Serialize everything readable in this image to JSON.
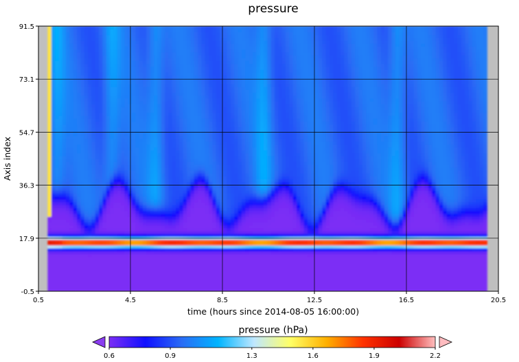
{
  "chart_data": {
    "type": "heatmap",
    "title": "pressure",
    "xlabel": "time (hours since 2014-08-05 16:00:00)",
    "ylabel": "Axis index",
    "x_ticks": [
      0.5,
      4.5,
      8.5,
      12.5,
      16.5,
      20.5
    ],
    "x_tick_labels": [
      "0.5",
      "4.5",
      "8.5",
      "12.5",
      "16.5",
      "20.5"
    ],
    "y_ticks": [
      -0.5,
      17.9,
      36.3,
      54.7,
      73.1,
      91.5
    ],
    "y_tick_labels": [
      "-0.5",
      "17.9",
      "36.3",
      "54.7",
      "73.1",
      "91.5"
    ],
    "xlim": [
      0.5,
      20.5
    ],
    "ylim": [
      -0.5,
      91.5
    ],
    "data_xlim": [
      0.9,
      20.0
    ],
    "grid": true,
    "colorbar": {
      "title": "pressure (hPa)",
      "ticks": [
        0.6,
        0.9,
        1.3,
        1.6,
        1.9,
        2.2
      ],
      "tick_labels": [
        "0.6",
        "0.9",
        "1.3",
        "1.6",
        "1.9",
        "2.2"
      ],
      "range": [
        0.6,
        2.2
      ],
      "colors": [
        "#7b2df5",
        "#1010ff",
        "#2a6cf5",
        "#00b4ff",
        "#bfe7ff",
        "#ffff66",
        "#ffb000",
        "#ff3300",
        "#cc0000",
        "#ffbfbf"
      ],
      "extend": "both",
      "under_color": "#8a3df0",
      "over_color": "#ffbcc0"
    },
    "missing_color": "#bfbfbf",
    "features": {
      "surface_band_y": [
        14.5,
        18.5
      ],
      "surface_peak_value": 2.0,
      "upper_region_value": 0.95,
      "lower_region_value": 0.6
    }
  }
}
